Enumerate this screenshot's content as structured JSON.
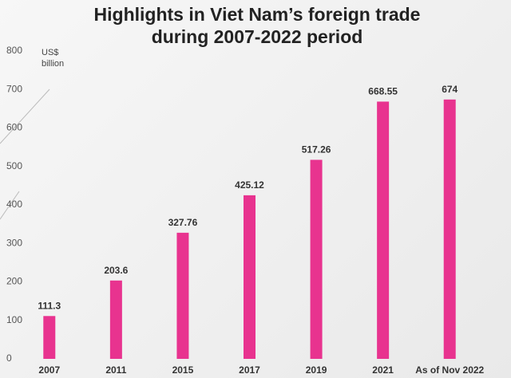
{
  "chart_data": {
    "type": "bar",
    "title": [
      "Highlights in Viet Nam’s foreign trade",
      "during 2007-2022 period"
    ],
    "ylabel": [
      "US$",
      "billion"
    ],
    "categories": [
      "2007",
      "2011",
      "2015",
      "2017",
      "2019",
      "2021",
      "As of Nov 2022"
    ],
    "values": [
      111.3,
      203.6,
      327.76,
      425.12,
      517.26,
      668.55,
      674
    ],
    "color": "#e8338f",
    "ylim": [
      0,
      800
    ],
    "yticks": [
      0,
      100,
      200,
      300,
      400,
      500,
      600,
      700,
      800
    ],
    "grid": false
  }
}
